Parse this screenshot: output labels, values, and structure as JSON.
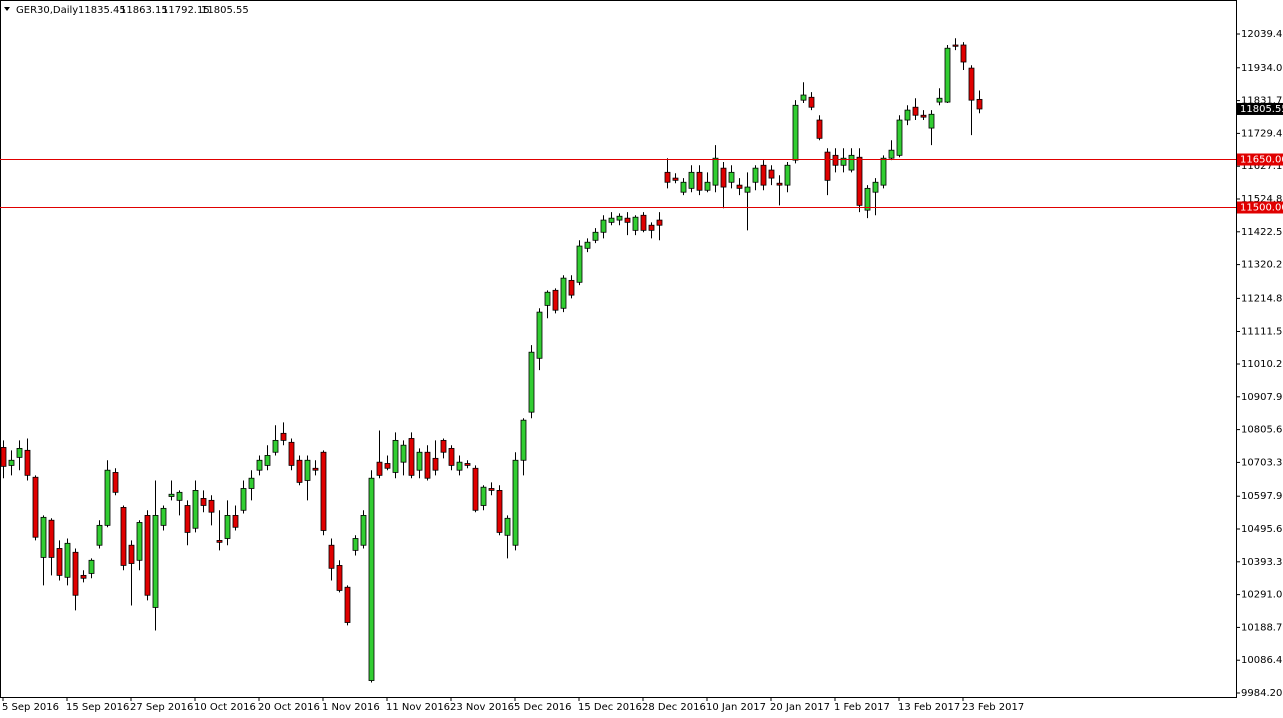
{
  "chart_data": {
    "type": "candlestick",
    "title": "GER30,Daily",
    "categories": [
      "5 Sep 2016",
      null,
      null,
      null,
      null,
      null,
      null,
      null,
      "15 Sep 2016",
      null,
      null,
      null,
      null,
      null,
      null,
      null,
      "27 Sep 2016",
      null,
      null,
      null,
      null,
      null,
      null,
      null,
      "10 Oct 2016",
      null,
      null,
      null,
      null,
      null,
      null,
      null,
      "20 Oct 2016",
      null,
      null,
      null,
      null,
      null,
      null,
      null,
      "1 Nov 2016",
      null,
      null,
      null,
      null,
      null,
      null,
      null,
      "11 Nov 2016",
      null,
      null,
      null,
      null,
      null,
      null,
      null,
      "23 Nov 2016",
      null,
      null,
      null,
      null,
      null,
      null,
      null,
      "5 Dec 2016",
      null,
      null,
      null,
      null,
      null,
      null,
      null,
      "15 Dec 2016",
      null,
      null,
      null,
      null,
      null,
      null,
      null,
      "28 Dec 2016",
      null,
      null,
      null,
      null,
      null,
      null,
      null,
      "10 Jan 2017",
      null,
      null,
      null,
      null,
      null,
      null,
      null,
      "20 Jan 2017",
      null,
      null,
      null,
      null,
      null,
      null,
      null,
      "1 Feb 2017",
      null,
      null,
      null,
      null,
      null,
      null,
      null,
      "13 Feb 2017",
      null,
      null,
      null,
      null,
      null,
      null,
      null,
      "23 Feb 2017",
      null,
      null
    ],
    "open": [
      10750,
      10694,
      10719,
      10741,
      10657,
      10407,
      10523,
      10435,
      10345,
      10423,
      10351,
      10357,
      10445,
      10507,
      10672,
      10563,
      10445,
      10398,
      10538,
      10251,
      10507,
      10597,
      10585,
      10569,
      10498,
      10591,
      10585,
      10460,
      10466,
      10538,
      10554,
      10622,
      10679,
      10694,
      10735,
      10794,
      10766,
      10710,
      10647,
      10685,
      10735,
      10445,
      10382,
      10314,
      10429,
      10445,
      10023,
      10704,
      10700,
      10672,
      10704,
      10778,
      10679,
      10735,
      10716,
      10772,
      10747,
      10679,
      10700,
      10685,
      10569,
      10622,
      10616,
      10476,
      10445,
      10710,
      10860,
      11028,
      11193,
      11240,
      11184,
      11271,
      11265,
      11371,
      11396,
      11421,
      11452,
      11459,
      11465,
      11427,
      11474,
      11443,
      11459,
      11608,
      11590,
      11546,
      11558,
      11608,
      11552,
      11568,
      11621,
      11577,
      11568,
      11546,
      11577,
      11630,
      11615,
      11574,
      11568,
      11646,
      11833,
      11842,
      11771,
      11671,
      11661,
      11630,
      11615,
      11655,
      11490,
      11546,
      11568,
      11652,
      11661,
      11771,
      11811,
      11786,
      11746,
      11827,
      11827,
      12005,
      12005,
      11933,
      11835.45
    ],
    "high": [
      10772,
      10741,
      10772,
      10778,
      10663,
      10538,
      10529,
      10460,
      10466,
      10435,
      10367,
      10404,
      10523,
      10710,
      10685,
      10569,
      10460,
      10523,
      10554,
      10647,
      10569,
      10647,
      10616,
      10585,
      10647,
      10616,
      10601,
      10554,
      10585,
      10569,
      10647,
      10679,
      10725,
      10757,
      10819,
      10828,
      10778,
      10725,
      10725,
      10710,
      10741,
      10466,
      10398,
      10320,
      10476,
      10554,
      10679,
      10803,
      10725,
      10797,
      10772,
      10797,
      10747,
      10757,
      10772,
      10778,
      10757,
      10725,
      10710,
      10694,
      10632,
      10641,
      10632,
      10538,
      10735,
      10841,
      11069,
      11184,
      11240,
      11246,
      11287,
      11287,
      11396,
      11402,
      11434,
      11474,
      11484,
      11480,
      11484,
      11474,
      11484,
      11452,
      11484,
      11652,
      11605,
      11590,
      11630,
      11630,
      11608,
      11693,
      11640,
      11630,
      11590,
      11608,
      11630,
      11646,
      11630,
      11599,
      11640,
      11833,
      11889,
      11858,
      11786,
      11683,
      11683,
      11683,
      11683,
      11683,
      11568,
      11590,
      11661,
      11708,
      11786,
      11817,
      11839,
      11802,
      11802,
      11870,
      12005,
      12026,
      12014,
      11942,
      11863.15
    ],
    "low": [
      10654,
      10663,
      10679,
      10647,
      10460,
      10320,
      10351,
      10335,
      10320,
      10242,
      10329,
      10342,
      10435,
      10501,
      10601,
      10367,
      10257,
      10367,
      10273,
      10179,
      10491,
      10585,
      10538,
      10445,
      10485,
      10548,
      10507,
      10429,
      10445,
      10491,
      10544,
      10585,
      10663,
      10679,
      10725,
      10757,
      10679,
      10632,
      10585,
      10663,
      10476,
      10335,
      10298,
      10195,
      10413,
      10435,
      10017,
      10654,
      10679,
      10654,
      10663,
      10654,
      10654,
      10647,
      10663,
      10716,
      10679,
      10663,
      10685,
      10548,
      10554,
      10601,
      10476,
      10404,
      10429,
      10663,
      10841,
      10991,
      11153,
      11168,
      11172,
      11215,
      11256,
      11359,
      11387,
      11402,
      11443,
      11443,
      11412,
      11412,
      11421,
      11402,
      11396,
      11558,
      11574,
      11537,
      11546,
      11537,
      11546,
      11546,
      11496,
      11558,
      11537,
      11427,
      11552,
      11552,
      11568,
      11505,
      11546,
      11636,
      11824,
      11802,
      11708,
      11537,
      11608,
      11608,
      11608,
      11484,
      11465,
      11474,
      11558,
      11646,
      11655,
      11755,
      11771,
      11771,
      11693,
      11817,
      11824,
      11989,
      11927,
      11724,
      11792.15
    ],
    "close": [
      10691,
      10710,
      10747,
      10663,
      10470,
      10532,
      10407,
      10351,
      10451,
      10289,
      10342,
      10398,
      10507,
      10679,
      10610,
      10382,
      10388,
      10516,
      10289,
      10538,
      10560,
      10604,
      10610,
      10485,
      10616,
      10569,
      10548,
      10454,
      10538,
      10501,
      10622,
      10654,
      10710,
      10725,
      10772,
      10772,
      10694,
      10641,
      10710,
      10679,
      10491,
      10373,
      10304,
      10204,
      10466,
      10538,
      10654,
      10663,
      10685,
      10772,
      10757,
      10663,
      10735,
      10654,
      10679,
      10735,
      10694,
      10704,
      10694,
      10554,
      10626,
      10616,
      10485,
      10529,
      10710,
      10835,
      11047,
      11172,
      11234,
      11178,
      11278,
      11225,
      11378,
      11390,
      11421,
      11459,
      11465,
      11471,
      11452,
      11468,
      11427,
      11427,
      11443,
      11577,
      11583,
      11577,
      11608,
      11552,
      11577,
      11652,
      11562,
      11608,
      11558,
      11562,
      11621,
      11568,
      11590,
      11568,
      11630,
      11817,
      11849,
      11811,
      11714,
      11583,
      11630,
      11652,
      11661,
      11505,
      11558,
      11577,
      11652,
      11677,
      11771,
      11802,
      11786,
      11780,
      11789,
      11839,
      11995,
      12001,
      11952,
      11833,
      11805.55
    ],
    "up_color": "#32cd32",
    "down_color": "#e00000",
    "ylim": [
      9971.7,
      12145.4
    ],
    "yticks": [
      {
        "value": 9984.2,
        "label": "9984.20"
      },
      {
        "value": 10086.4,
        "label": "10086.40"
      },
      {
        "value": 10188.7,
        "label": "10188.70"
      },
      {
        "value": 10291,
        "label": "10291.00"
      },
      {
        "value": 10393.3,
        "label": "10393.30"
      },
      {
        "value": 10495.6,
        "label": "10495.60"
      },
      {
        "value": 10597.9,
        "label": "10597.90"
      },
      {
        "value": 10703.3,
        "label": "10703.30"
      },
      {
        "value": 10805.6,
        "label": "10805.60"
      },
      {
        "value": 10907.9,
        "label": "10907.90"
      },
      {
        "value": 11010.2,
        "label": "11010.20"
      },
      {
        "value": 11111.55,
        "label": "11111.55"
      },
      {
        "value": 11214.8,
        "label": "11214.80"
      },
      {
        "value": 11320.2,
        "label": "11320.20"
      },
      {
        "value": 11422.5,
        "label": "11422.50"
      },
      {
        "value": 11524.8,
        "label": "11524.80"
      },
      {
        "value": 11627.1,
        "label": "11627.10"
      },
      {
        "value": 11729.4,
        "label": "11729.40"
      },
      {
        "value": 11831.7,
        "label": "11831.70"
      },
      {
        "value": 11934,
        "label": "11934.00"
      },
      {
        "value": 12039.4,
        "label": "12039.40"
      }
    ],
    "hlines": [
      {
        "value": 11650,
        "label": "11650.00"
      },
      {
        "value": 11500,
        "label": "11500.00"
      }
    ],
    "hline_color": "#e00000",
    "grid": false
  }
}
